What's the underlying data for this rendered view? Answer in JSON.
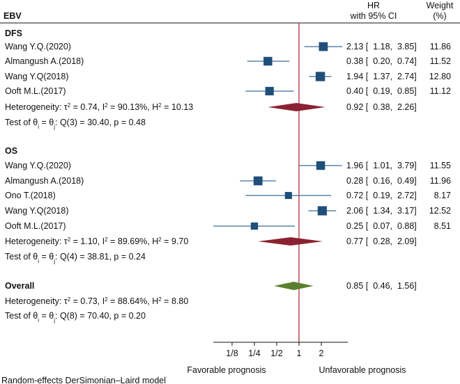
{
  "chart_data": {
    "type": "forest",
    "header": {
      "group_label": "EBV",
      "effect_col_line1": "HR",
      "effect_col_line2": "with 95% CI",
      "weight_col_line1": "Weight",
      "weight_col_line2": "(%)"
    },
    "groups": [
      {
        "name": "DFS",
        "studies": [
          {
            "label": "Wang Y.Q.(2020)",
            "hr": 2.13,
            "lo": 1.18,
            "hi": 3.85,
            "ci_text": "2.13 [  1.18,  3.85]",
            "weight": "11.86"
          },
          {
            "label": "Almangush A.(2018)",
            "hr": 0.38,
            "lo": 0.2,
            "hi": 0.74,
            "ci_text": "0.38 [  0.20,  0.74]",
            "weight": "11.52"
          },
          {
            "label": "Wang Y.Q(2018)",
            "hr": 1.94,
            "lo": 1.37,
            "hi": 2.74,
            "ci_text": "1.94 [  1.37,  2.74]",
            "weight": "12.80"
          },
          {
            "label": "Ooft M.L.(2017)",
            "hr": 0.4,
            "lo": 0.19,
            "hi": 0.85,
            "ci_text": "0.40 [  0.19,  0.85]",
            "weight": "11.12"
          }
        ],
        "summary": {
          "hr": 0.92,
          "lo": 0.38,
          "hi": 2.26,
          "ci_text": "0.92 [  0.38,  2.26]"
        },
        "heterogeneity": {
          "tau2": "0.74",
          "i2": "90.13%",
          "h2": "10.13"
        },
        "test": {
          "stat": "Q(3) = 30.40",
          "p": "p = 0.48"
        }
      },
      {
        "name": "OS",
        "studies": [
          {
            "label": "Wang Y.Q.(2020)",
            "hr": 1.96,
            "lo": 1.01,
            "hi": 3.79,
            "ci_text": "1.96 [  1.01,  3.79]",
            "weight": "11.55"
          },
          {
            "label": "Almangush A.(2018)",
            "hr": 0.28,
            "lo": 0.16,
            "hi": 0.49,
            "ci_text": "0.28 [  0.16,  0.49]",
            "weight": "11.96"
          },
          {
            "label": "Ono T.(2018)",
            "hr": 0.72,
            "lo": 0.19,
            "hi": 2.72,
            "ci_text": "0.72 [  0.19,  2.72]",
            "weight": "8.17"
          },
          {
            "label": "Wang Y.Q(2018)",
            "hr": 2.06,
            "lo": 1.34,
            "hi": 3.17,
            "ci_text": "2.06 [  1.34,  3.17]",
            "weight": "12.52"
          },
          {
            "label": "Ooft M.L.(2017)",
            "hr": 0.25,
            "lo": 0.07,
            "hi": 0.88,
            "ci_text": "0.25 [  0.07,  0.88]",
            "weight": "8.51"
          }
        ],
        "summary": {
          "hr": 0.77,
          "lo": 0.28,
          "hi": 2.09,
          "ci_text": "0.77 [  0.28,  2.09]"
        },
        "heterogeneity": {
          "tau2": "1.10",
          "i2": "89.69%",
          "h2": "9.70"
        },
        "test": {
          "stat": "Q(4) = 38.81",
          "p": "p = 0.24"
        }
      }
    ],
    "overall": {
      "name": "Overall",
      "hr": 0.85,
      "lo": 0.46,
      "hi": 1.56,
      "ci_text": "0.85 [  0.46,  1.56]",
      "heterogeneity": {
        "tau2": "0.73",
        "i2": "88.64%",
        "h2": "8.80"
      },
      "test": {
        "stat": "Q(8) = 70.40",
        "p": "p = 0.20"
      }
    },
    "x_axis": {
      "scale": "log",
      "range": [
        0.0625,
        5.0
      ],
      "ticks": [
        0.125,
        0.25,
        0.5,
        1,
        2
      ],
      "tick_labels": [
        "1/8",
        "1/4",
        "1/2",
        "1",
        "2"
      ],
      "null_value": 1
    },
    "labels": {
      "favorable": "Favorable prognosis",
      "unfavorable": "Unfavorable prognosis",
      "footnote": "Random-effects DerSimonian–Laird model"
    },
    "colors": {
      "study_marker": "#1f4e79",
      "study_ci": "#3b6a9a",
      "subgroup_diamond": "#8b2232",
      "overall_diamond": "#5a7f2e",
      "null_line": "#b03040"
    }
  }
}
